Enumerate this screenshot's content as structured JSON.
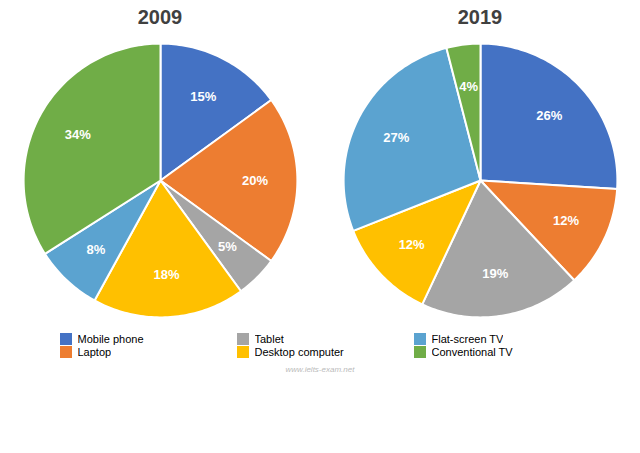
{
  "chart_data": [
    {
      "type": "pie",
      "title": "2009",
      "categories": [
        "Mobile phone",
        "Laptop",
        "Tablet",
        "Desktop computer",
        "Flat-screen TV",
        "Conventional TV"
      ],
      "values": [
        15,
        20,
        5,
        18,
        8,
        34
      ],
      "value_labels": [
        "15%",
        "20%",
        "5%",
        "18%",
        "8%",
        "34%"
      ],
      "colors": [
        "#4472C4",
        "#ED7D31",
        "#A5A5A5",
        "#FFC000",
        "#5BA3D0",
        "#70AD47"
      ],
      "data_labels": true,
      "legend": "bottom",
      "annotations": [
        "www.ielts-exam.net"
      ]
    },
    {
      "type": "pie",
      "title": "2019",
      "categories": [
        "Mobile phone",
        "Laptop",
        "Tablet",
        "Desktop computer",
        "Flat-screen TV",
        "Conventional TV"
      ],
      "values": [
        26,
        12,
        19,
        12,
        27,
        4
      ],
      "value_labels": [
        "26%",
        "12%",
        "19%",
        "12%",
        "27%",
        "4%"
      ],
      "colors": [
        "#4472C4",
        "#ED7D31",
        "#A5A5A5",
        "#FFC000",
        "#5BA3D0",
        "#70AD47"
      ],
      "data_labels": true,
      "legend": "bottom"
    }
  ]
}
